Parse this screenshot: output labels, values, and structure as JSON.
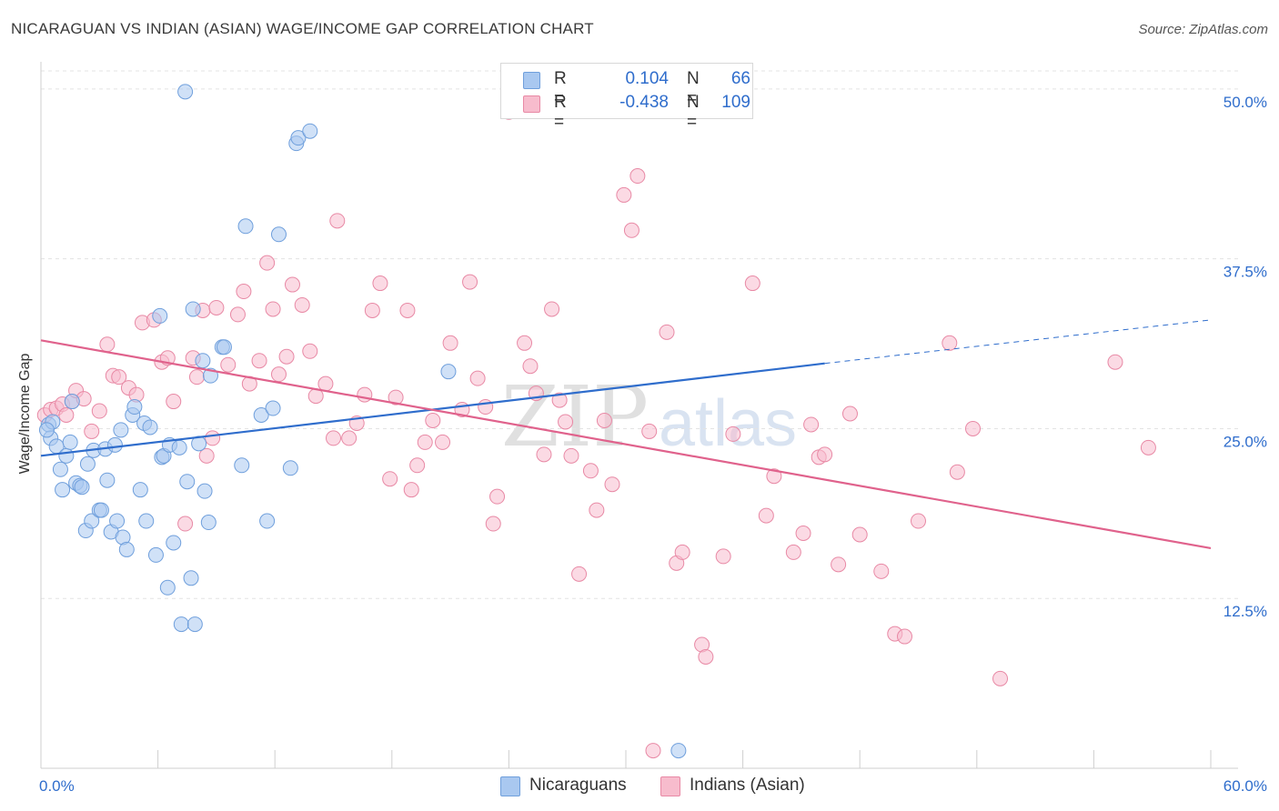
{
  "title": "NICARAGUAN VS INDIAN (ASIAN) WAGE/INCOME GAP CORRELATION CHART",
  "source": "Source: ZipAtlas.com",
  "watermark": {
    "zip": "ZIP",
    "atlas": "atlas"
  },
  "legend": {
    "r_label": "R =",
    "n_label": "N =",
    "rows": [
      {
        "r": "0.104",
        "n": "66",
        "color": "#a9c8f0",
        "border": "#6f9fdc"
      },
      {
        "r": "-0.438",
        "n": "109",
        "color": "#f7bccd",
        "border": "#e889a5"
      }
    ]
  },
  "bottom_legend": [
    "Nicaraguans",
    "Indians (Asian)"
  ],
  "chart_data": {
    "type": "scatter",
    "title": "NICARAGUAN VS INDIAN (ASIAN) WAGE/INCOME GAP CORRELATION CHART",
    "xlabel": "",
    "ylabel": "Wage/Income Gap",
    "xlim": [
      0,
      60
    ],
    "ylim": [
      0,
      52
    ],
    "x_tick_labels": [
      "0.0%",
      "60.0%"
    ],
    "y_ticks": [
      12.5,
      25.0,
      37.5,
      50.0
    ],
    "y_tick_labels": [
      "12.5%",
      "25.0%",
      "37.5%",
      "50.0%"
    ],
    "grid": "horizontal dashed",
    "legend_position": "top-center",
    "series": [
      {
        "name": "Nicaraguans",
        "color": "#6f9fdc",
        "fill": "#a9c8f0",
        "trend_color": "#2f6dcc",
        "trend": {
          "x0": 0,
          "y0": 23.0,
          "x1": 40.2,
          "y1": 29.8,
          "x_dashed_end": 60,
          "y_dashed_end": 33.0
        },
        "points": [
          [
            0.4,
            25.3
          ],
          [
            0.5,
            24.3
          ],
          [
            0.6,
            25.5
          ],
          [
            0.8,
            23.7
          ],
          [
            1.0,
            22.0
          ],
          [
            1.1,
            20.5
          ],
          [
            1.3,
            23.0
          ],
          [
            1.5,
            24.0
          ],
          [
            1.6,
            27.0
          ],
          [
            1.8,
            21.0
          ],
          [
            2.0,
            20.8
          ],
          [
            2.1,
            20.7
          ],
          [
            2.3,
            17.5
          ],
          [
            2.4,
            22.4
          ],
          [
            2.6,
            18.2
          ],
          [
            2.7,
            23.4
          ],
          [
            3.0,
            19.0
          ],
          [
            3.1,
            19.0
          ],
          [
            3.3,
            23.5
          ],
          [
            3.4,
            21.2
          ],
          [
            3.6,
            17.4
          ],
          [
            3.8,
            23.8
          ],
          [
            3.9,
            18.2
          ],
          [
            4.1,
            24.9
          ],
          [
            4.2,
            17.0
          ],
          [
            4.4,
            16.1
          ],
          [
            4.7,
            26.0
          ],
          [
            4.8,
            26.6
          ],
          [
            5.1,
            20.5
          ],
          [
            5.3,
            25.4
          ],
          [
            5.4,
            18.2
          ],
          [
            5.6,
            25.1
          ],
          [
            5.9,
            15.7
          ],
          [
            6.1,
            33.3
          ],
          [
            6.2,
            22.9
          ],
          [
            6.3,
            23.0
          ],
          [
            6.5,
            13.3
          ],
          [
            6.6,
            23.8
          ],
          [
            6.8,
            16.6
          ],
          [
            7.1,
            23.6
          ],
          [
            7.2,
            10.6
          ],
          [
            7.4,
            49.8
          ],
          [
            7.5,
            21.1
          ],
          [
            7.7,
            14.0
          ],
          [
            7.8,
            33.8
          ],
          [
            7.9,
            10.6
          ],
          [
            8.1,
            23.9
          ],
          [
            8.3,
            30.0
          ],
          [
            8.4,
            20.4
          ],
          [
            8.6,
            18.1
          ],
          [
            8.7,
            28.9
          ],
          [
            9.3,
            31.0
          ],
          [
            9.4,
            31.0
          ],
          [
            10.3,
            22.3
          ],
          [
            10.5,
            39.9
          ],
          [
            11.3,
            26.0
          ],
          [
            11.6,
            18.2
          ],
          [
            11.9,
            26.5
          ],
          [
            12.2,
            39.3
          ],
          [
            12.8,
            22.1
          ],
          [
            13.1,
            46.0
          ],
          [
            13.2,
            46.4
          ],
          [
            13.8,
            46.9
          ],
          [
            20.9,
            29.2
          ],
          [
            32.7,
            1.3
          ],
          [
            0.3,
            24.9
          ]
        ]
      },
      {
        "name": "Indians (Asian)",
        "color": "#e889a5",
        "fill": "#f7bccd",
        "trend_color": "#e0628c",
        "trend": {
          "x0": 0,
          "y0": 31.5,
          "x1": 60,
          "y1": 16.2
        },
        "points": [
          [
            0.2,
            26.0
          ],
          [
            0.5,
            26.4
          ],
          [
            0.8,
            26.5
          ],
          [
            1.1,
            26.8
          ],
          [
            1.3,
            26.0
          ],
          [
            1.6,
            27.0
          ],
          [
            1.8,
            27.8
          ],
          [
            2.2,
            27.2
          ],
          [
            2.6,
            24.8
          ],
          [
            3.0,
            26.3
          ],
          [
            3.4,
            31.2
          ],
          [
            3.7,
            28.9
          ],
          [
            4.0,
            28.8
          ],
          [
            4.5,
            28.0
          ],
          [
            4.9,
            27.5
          ],
          [
            5.2,
            32.8
          ],
          [
            5.8,
            33.0
          ],
          [
            6.2,
            29.9
          ],
          [
            6.5,
            30.2
          ],
          [
            6.8,
            27.0
          ],
          [
            7.4,
            18.0
          ],
          [
            7.8,
            30.2
          ],
          [
            8.0,
            28.8
          ],
          [
            8.3,
            33.7
          ],
          [
            8.5,
            23.0
          ],
          [
            8.8,
            24.3
          ],
          [
            9.0,
            33.9
          ],
          [
            9.6,
            29.7
          ],
          [
            10.1,
            33.4
          ],
          [
            10.4,
            35.1
          ],
          [
            10.7,
            28.3
          ],
          [
            11.2,
            30.0
          ],
          [
            11.6,
            37.2
          ],
          [
            11.9,
            33.8
          ],
          [
            12.2,
            29.0
          ],
          [
            12.6,
            30.3
          ],
          [
            12.9,
            35.6
          ],
          [
            13.4,
            34.1
          ],
          [
            13.8,
            30.7
          ],
          [
            14.1,
            27.4
          ],
          [
            14.6,
            28.3
          ],
          [
            15.0,
            24.3
          ],
          [
            15.2,
            40.3
          ],
          [
            15.8,
            24.3
          ],
          [
            16.2,
            25.4
          ],
          [
            16.6,
            27.5
          ],
          [
            17.0,
            33.7
          ],
          [
            17.4,
            35.7
          ],
          [
            17.9,
            21.3
          ],
          [
            18.2,
            27.3
          ],
          [
            18.8,
            33.7
          ],
          [
            19.0,
            20.5
          ],
          [
            19.3,
            22.3
          ],
          [
            19.7,
            24.0
          ],
          [
            20.1,
            25.6
          ],
          [
            20.6,
            24.0
          ],
          [
            21.0,
            31.3
          ],
          [
            21.6,
            26.4
          ],
          [
            22.0,
            35.8
          ],
          [
            22.4,
            28.7
          ],
          [
            22.8,
            26.6
          ],
          [
            23.2,
            18.0
          ],
          [
            23.4,
            20.0
          ],
          [
            24.0,
            48.3
          ],
          [
            24.8,
            31.3
          ],
          [
            25.1,
            29.6
          ],
          [
            25.4,
            27.6
          ],
          [
            25.8,
            23.1
          ],
          [
            26.2,
            33.8
          ],
          [
            26.6,
            27.1
          ],
          [
            26.9,
            25.5
          ],
          [
            27.2,
            23.0
          ],
          [
            27.6,
            14.3
          ],
          [
            28.2,
            21.9
          ],
          [
            28.5,
            19.0
          ],
          [
            28.9,
            25.6
          ],
          [
            29.3,
            20.9
          ],
          [
            29.9,
            42.2
          ],
          [
            30.3,
            39.6
          ],
          [
            30.6,
            43.6
          ],
          [
            31.2,
            24.8
          ],
          [
            32.1,
            32.1
          ],
          [
            32.6,
            15.1
          ],
          [
            32.9,
            15.9
          ],
          [
            33.9,
            9.1
          ],
          [
            34.1,
            8.2
          ],
          [
            35.0,
            15.6
          ],
          [
            35.5,
            24.6
          ],
          [
            36.5,
            35.7
          ],
          [
            37.2,
            18.6
          ],
          [
            37.6,
            21.5
          ],
          [
            38.6,
            15.9
          ],
          [
            39.1,
            17.3
          ],
          [
            39.5,
            25.3
          ],
          [
            39.9,
            22.9
          ],
          [
            40.2,
            23.1
          ],
          [
            40.9,
            15.0
          ],
          [
            41.5,
            26.1
          ],
          [
            42.0,
            17.2
          ],
          [
            43.1,
            14.5
          ],
          [
            43.8,
            9.9
          ],
          [
            44.3,
            9.7
          ],
          [
            45.0,
            18.2
          ],
          [
            46.6,
            31.3
          ],
          [
            47.0,
            21.8
          ],
          [
            47.8,
            25.0
          ],
          [
            49.2,
            6.6
          ],
          [
            55.1,
            29.9
          ],
          [
            56.8,
            23.6
          ],
          [
            31.4,
            1.3
          ]
        ]
      }
    ]
  }
}
